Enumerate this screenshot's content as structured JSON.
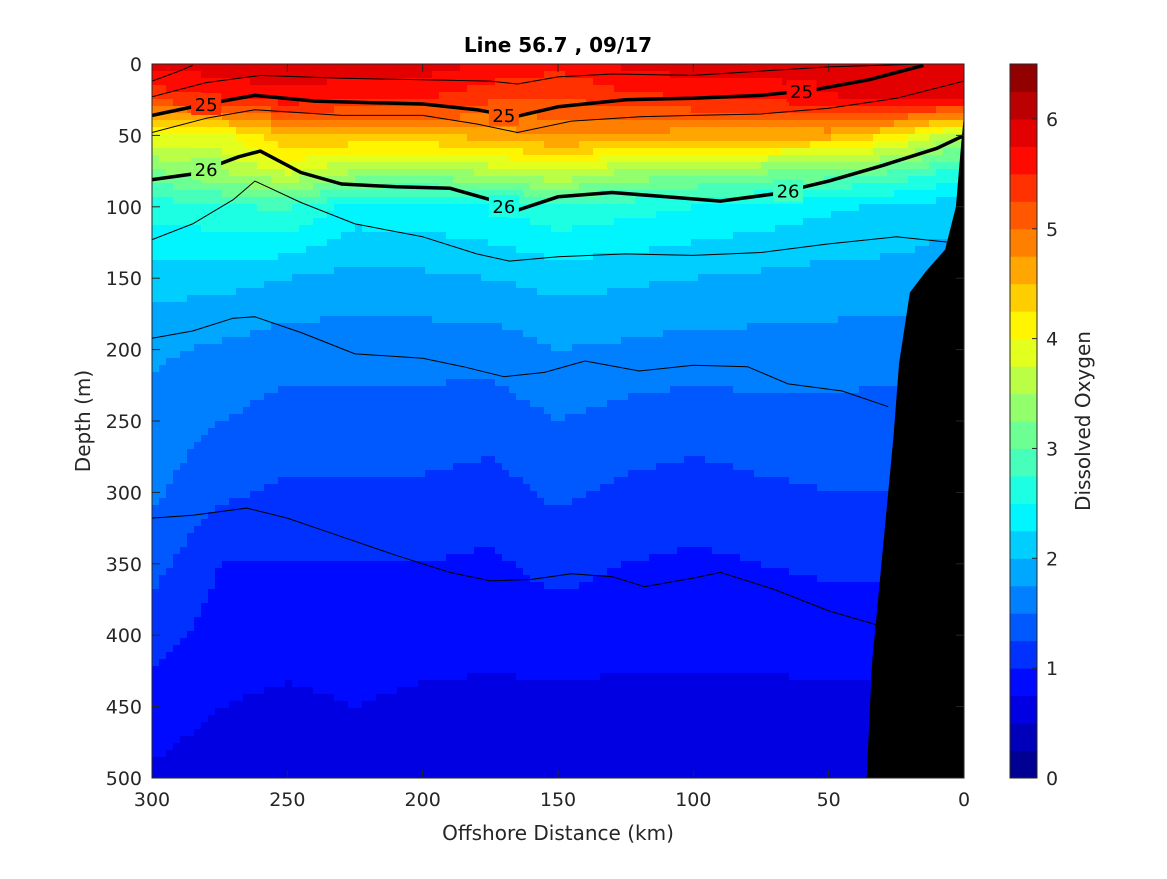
{
  "chart_data": {
    "type": "heatmap",
    "subtype": "filled-contour section plot",
    "title": "Line 56.7 , 09/17",
    "xlabel": "Offshore Distance (km)",
    "ylabel": "Depth (m)",
    "xlim": [
      300,
      0
    ],
    "x_reversed": true,
    "ylim": [
      0,
      500
    ],
    "y_reversed": true,
    "x_ticks": [
      300,
      250,
      200,
      150,
      100,
      50,
      0
    ],
    "y_ticks": [
      0,
      50,
      100,
      150,
      200,
      250,
      300,
      350,
      400,
      450,
      500
    ],
    "colorbar": {
      "label": "Dissolved Oxygen",
      "range": [
        0,
        6.5
      ],
      "ticks": [
        0,
        1,
        2,
        3,
        4,
        5,
        6
      ],
      "levels": [
        0,
        0.25,
        0.5,
        0.75,
        1,
        1.25,
        1.5,
        1.75,
        2,
        2.25,
        2.5,
        2.75,
        3,
        3.25,
        3.5,
        3.75,
        4,
        4.25,
        4.5,
        4.75,
        5,
        5.25,
        5.5,
        5.75,
        6,
        6.25,
        6.5
      ],
      "colormap": "jet"
    },
    "x_stations_km": [
      300,
      275,
      250,
      225,
      200,
      175,
      150,
      125,
      100,
      75,
      50,
      25,
      5
    ],
    "oxygen_profiles": [
      {
        "depth": 0,
        "values": [
          5.8,
          5.9,
          6.0,
          5.9,
          5.9,
          5.7,
          5.6,
          5.8,
          5.9,
          5.9,
          6.0,
          6.0,
          6.0
        ]
      },
      {
        "depth": 25,
        "values": [
          5.3,
          5.5,
          5.6,
          5.5,
          5.5,
          5.3,
          5.2,
          5.4,
          5.5,
          5.5,
          5.7,
          5.8,
          5.8
        ]
      },
      {
        "depth": 50,
        "values": [
          4.0,
          3.9,
          4.5,
          4.5,
          4.5,
          4.6,
          4.8,
          4.7,
          4.6,
          4.6,
          4.6,
          4.2,
          3.6
        ]
      },
      {
        "depth": 75,
        "values": [
          3.2,
          3.5,
          3.8,
          3.5,
          3.4,
          3.6,
          3.8,
          3.5,
          3.4,
          3.3,
          3.2,
          3.0,
          2.7
        ]
      },
      {
        "depth": 100,
        "values": [
          2.6,
          2.7,
          2.8,
          2.4,
          2.4,
          2.5,
          2.7,
          2.6,
          2.5,
          2.4,
          2.3,
          2.2,
          2.1
        ]
      },
      {
        "depth": 150,
        "values": [
          2.1,
          2.1,
          2.0,
          1.9,
          1.95,
          2.0,
          2.1,
          2.05,
          2.0,
          1.95,
          1.9,
          1.9,
          1.85
        ]
      },
      {
        "depth": 200,
        "values": [
          1.8,
          1.7,
          1.6,
          1.6,
          1.6,
          1.6,
          1.75,
          1.7,
          1.65,
          1.65,
          1.65,
          1.6,
          1.6
        ]
      },
      {
        "depth": 250,
        "values": [
          1.65,
          1.5,
          1.4,
          1.4,
          1.4,
          1.35,
          1.5,
          1.4,
          1.35,
          1.4,
          1.4,
          1.4,
          1.4
        ]
      },
      {
        "depth": 300,
        "values": [
          1.55,
          1.3,
          1.2,
          1.2,
          1.2,
          1.15,
          1.3,
          1.2,
          1.15,
          1.2,
          1.25,
          1.25,
          1.25
        ]
      },
      {
        "depth": 350,
        "values": [
          1.35,
          1.0,
          1.0,
          1.0,
          1.0,
          0.95,
          1.1,
          1.0,
          0.95,
          1.0,
          1.05,
          1.05,
          1.05
        ]
      },
      {
        "depth": 400,
        "values": [
          1.1,
          0.9,
          0.85,
          0.85,
          0.85,
          0.8,
          0.85,
          0.8,
          0.8,
          0.8,
          0.85,
          0.85,
          0.85
        ]
      },
      {
        "depth": 450,
        "values": [
          0.9,
          0.75,
          0.7,
          0.75,
          0.7,
          0.7,
          0.7,
          0.7,
          0.7,
          0.7,
          0.7,
          0.7,
          0.7
        ]
      },
      {
        "depth": 500,
        "values": [
          0.7,
          0.6,
          0.65,
          0.65,
          0.6,
          0.6,
          0.6,
          0.6,
          0.6,
          0.6,
          0.6,
          0.6,
          0.6
        ]
      }
    ],
    "density_isolines": [
      {
        "label": "",
        "emphasis": false,
        "points": [
          [
            300,
            12
          ],
          [
            290,
            5
          ],
          [
            285,
            1
          ]
        ]
      },
      {
        "label": "",
        "emphasis": false,
        "points": [
          [
            300,
            23
          ],
          [
            280,
            13
          ],
          [
            260,
            8
          ],
          [
            230,
            10
          ],
          [
            200,
            11
          ],
          [
            175,
            12
          ],
          [
            165,
            14
          ],
          [
            150,
            9
          ],
          [
            130,
            7
          ],
          [
            100,
            8
          ],
          [
            75,
            5
          ],
          [
            50,
            2
          ],
          [
            15,
            0
          ]
        ]
      },
      {
        "label": "25",
        "emphasis": true,
        "points": [
          [
            300,
            36
          ],
          [
            280,
            28
          ],
          [
            262,
            22
          ],
          [
            240,
            26
          ],
          [
            220,
            27
          ],
          [
            200,
            28
          ],
          [
            180,
            32
          ],
          [
            166,
            37
          ],
          [
            150,
            30
          ],
          [
            125,
            25
          ],
          [
            100,
            24
          ],
          [
            75,
            22
          ],
          [
            55,
            18
          ],
          [
            35,
            11
          ],
          [
            15,
            1
          ]
        ]
      },
      {
        "label": "",
        "emphasis": false,
        "points": [
          [
            300,
            48
          ],
          [
            280,
            38
          ],
          [
            262,
            32
          ],
          [
            230,
            36
          ],
          [
            200,
            36
          ],
          [
            180,
            42
          ],
          [
            165,
            48
          ],
          [
            145,
            40
          ],
          [
            120,
            37
          ],
          [
            100,
            36
          ],
          [
            75,
            35
          ],
          [
            50,
            31
          ],
          [
            25,
            24
          ],
          [
            0,
            12
          ]
        ]
      },
      {
        "label": "26",
        "emphasis": true,
        "points": [
          [
            300,
            81
          ],
          [
            285,
            77
          ],
          [
            268,
            65
          ],
          [
            260,
            61
          ],
          [
            245,
            76
          ],
          [
            230,
            84
          ],
          [
            210,
            86
          ],
          [
            190,
            87
          ],
          [
            175,
            95
          ],
          [
            166,
            103
          ],
          [
            150,
            93
          ],
          [
            130,
            90
          ],
          [
            110,
            93
          ],
          [
            90,
            96
          ],
          [
            70,
            91
          ],
          [
            50,
            82
          ],
          [
            30,
            71
          ],
          [
            10,
            59
          ],
          [
            0,
            50
          ]
        ]
      },
      {
        "label": "",
        "emphasis": false,
        "points": [
          [
            300,
            123
          ],
          [
            285,
            112
          ],
          [
            270,
            95
          ],
          [
            262,
            82
          ],
          [
            245,
            97
          ],
          [
            225,
            112
          ],
          [
            200,
            121
          ],
          [
            180,
            133
          ],
          [
            168,
            138
          ],
          [
            150,
            135
          ],
          [
            125,
            133
          ],
          [
            100,
            134
          ],
          [
            75,
            132
          ],
          [
            50,
            126
          ],
          [
            25,
            121
          ],
          [
            0,
            126
          ]
        ]
      },
      {
        "label": "",
        "emphasis": false,
        "points": [
          [
            300,
            192
          ],
          [
            285,
            187
          ],
          [
            270,
            178
          ],
          [
            262,
            177
          ],
          [
            245,
            188
          ],
          [
            225,
            203
          ],
          [
            200,
            206
          ],
          [
            185,
            212
          ],
          [
            170,
            219
          ],
          [
            155,
            216
          ],
          [
            140,
            208
          ],
          [
            120,
            215
          ],
          [
            100,
            211
          ],
          [
            80,
            212
          ],
          [
            65,
            224
          ],
          [
            45,
            229
          ],
          [
            28,
            240
          ]
        ]
      },
      {
        "label": "",
        "emphasis": false,
        "points": [
          [
            300,
            318
          ],
          [
            285,
            316
          ],
          [
            265,
            311
          ],
          [
            250,
            318
          ],
          [
            230,
            331
          ],
          [
            210,
            344
          ],
          [
            190,
            356
          ],
          [
            175,
            362
          ],
          [
            160,
            361
          ],
          [
            145,
            357
          ],
          [
            130,
            359
          ],
          [
            118,
            366
          ],
          [
            100,
            360
          ],
          [
            90,
            356
          ],
          [
            70,
            368
          ],
          [
            50,
            383
          ],
          [
            30,
            394
          ]
        ]
      }
    ],
    "bottom_profile": [
      [
        36,
        500
      ],
      [
        34,
        420
      ],
      [
        31,
        360
      ],
      [
        28,
        300
      ],
      [
        26,
        260
      ],
      [
        24,
        210
      ],
      [
        20,
        160
      ],
      [
        14,
        145
      ],
      [
        7,
        130
      ],
      [
        3,
        100
      ],
      [
        1,
        55
      ],
      [
        0,
        35
      ]
    ]
  }
}
